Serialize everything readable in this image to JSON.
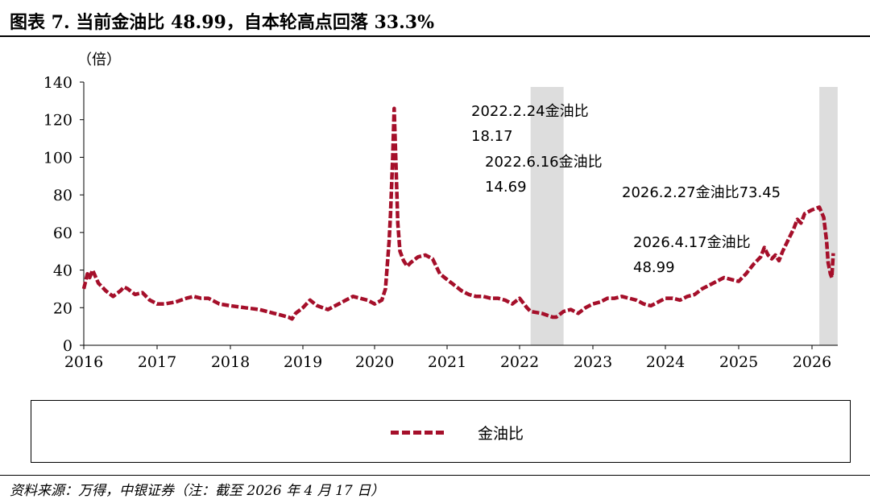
{
  "title": "图表 7. 当前金油比 48.99，自本轮高点回落 33.3%",
  "source": "资料来源：万得，中银证券（注：截至 2026 年 4 月 17 日）",
  "chart_data": {
    "type": "line",
    "ylabel": "（倍）",
    "ylim": [
      0,
      140
    ],
    "yticks": [
      "0",
      "20",
      "40",
      "60",
      "80",
      "100",
      "120",
      "140"
    ],
    "xlim": [
      2016,
      2026.4
    ],
    "xticks": [
      "2016",
      "2017",
      "2018",
      "2019",
      "2020",
      "2021",
      "2022",
      "2023",
      "2024",
      "2025",
      "2026"
    ],
    "grid": false,
    "legend_position": "bottom",
    "series_color": "#a50f2a",
    "shade_color": "#d9d9d9",
    "shaded_periods": [
      [
        2022.15,
        2022.6
      ],
      [
        2026.1,
        2026.35
      ]
    ],
    "series": [
      {
        "name": "金油比",
        "x": [
          2016.0,
          2016.05,
          2016.08,
          2016.12,
          2016.2,
          2016.25,
          2016.3,
          2016.4,
          2016.5,
          2016.55,
          2016.6,
          2016.7,
          2016.8,
          2016.9,
          2017.0,
          2017.1,
          2017.25,
          2017.4,
          2017.5,
          2017.6,
          2017.7,
          2017.85,
          2018.0,
          2018.2,
          2018.4,
          2018.6,
          2018.7,
          2018.8,
          2018.85,
          2018.9,
          2019.0,
          2019.1,
          2019.2,
          2019.35,
          2019.5,
          2019.6,
          2019.7,
          2019.8,
          2019.9,
          2020.0,
          2020.1,
          2020.15,
          2020.2,
          2020.22,
          2020.25,
          2020.27,
          2020.3,
          2020.32,
          2020.35,
          2020.4,
          2020.45,
          2020.5,
          2020.6,
          2020.7,
          2020.8,
          2020.9,
          2021.0,
          2021.1,
          2021.2,
          2021.3,
          2021.4,
          2021.5,
          2021.6,
          2021.7,
          2021.8,
          2021.9,
          2022.0,
          2022.1,
          2022.15,
          2022.3,
          2022.45,
          2022.5,
          2022.6,
          2022.7,
          2022.8,
          2022.9,
          2023.0,
          2023.1,
          2023.2,
          2023.3,
          2023.4,
          2023.5,
          2023.6,
          2023.7,
          2023.8,
          2023.9,
          2024.0,
          2024.1,
          2024.2,
          2024.3,
          2024.4,
          2024.5,
          2024.6,
          2024.7,
          2024.8,
          2024.9,
          2025.0,
          2025.1,
          2025.2,
          2025.3,
          2025.35,
          2025.4,
          2025.45,
          2025.5,
          2025.55,
          2025.6,
          2025.7,
          2025.75,
          2025.8,
          2025.85,
          2025.9,
          2026.0,
          2026.1,
          2026.16,
          2026.2,
          2026.22,
          2026.25,
          2026.27,
          2026.29
        ],
        "values": [
          30,
          38,
          36,
          40,
          33,
          31,
          29,
          26,
          29,
          31,
          30,
          27,
          28,
          24,
          22,
          22,
          23,
          25,
          26,
          25,
          25,
          22,
          21,
          20,
          19,
          17,
          16,
          15,
          14,
          17,
          20,
          24,
          21,
          19,
          22,
          24,
          26,
          25,
          24,
          22,
          24,
          30,
          55,
          70,
          100,
          126,
          90,
          65,
          50,
          45,
          42,
          44,
          47,
          48,
          46,
          38,
          35,
          32,
          29,
          27,
          26,
          26,
          25,
          25,
          24,
          22,
          25,
          20,
          18,
          17,
          15,
          15,
          18,
          19,
          17,
          20,
          22,
          23,
          25,
          25,
          26,
          25,
          24,
          22,
          21,
          23,
          25,
          25,
          24,
          26,
          27,
          30,
          32,
          34,
          36,
          35,
          34,
          38,
          43,
          47,
          52,
          48,
          46,
          48,
          45,
          50,
          58,
          62,
          67,
          65,
          70,
          72,
          73.45,
          68,
          55,
          44,
          38,
          36,
          48.99
        ]
      }
    ],
    "annotations": [
      {
        "lines": [
          "2022.2.24金油比",
          "18.17"
        ]
      },
      {
        "lines": [
          "2022.6.16金油比",
          "14.69"
        ]
      },
      {
        "lines": [
          "2026.2.27金油比73.45"
        ]
      },
      {
        "lines": [
          "2026.4.17金油比",
          "48.99"
        ]
      }
    ]
  }
}
